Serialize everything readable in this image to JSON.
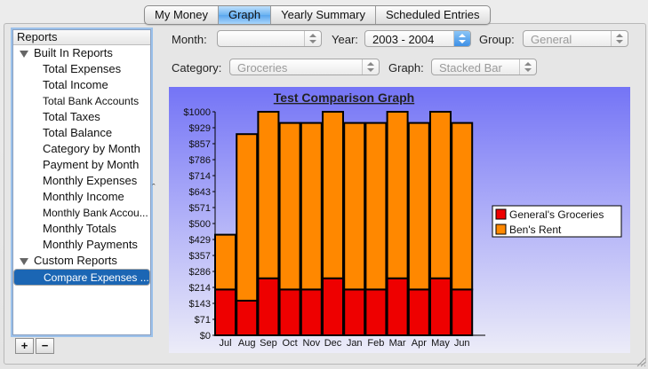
{
  "tabs": [
    {
      "label": "My Money",
      "active": false
    },
    {
      "label": "Graph",
      "active": true
    },
    {
      "label": "Yearly Summary",
      "active": false
    },
    {
      "label": "Scheduled Entries",
      "active": false
    }
  ],
  "sidebar": {
    "header": "Reports",
    "groups": [
      {
        "label": "Built In Reports",
        "items": [
          "Total Expenses",
          "Total Income",
          "Total Bank Accounts",
          "Total Taxes",
          "Total Balance",
          "Category by Month",
          "Payment by Month",
          "Monthly Expenses",
          "Monthly Income",
          "Monthly Bank Accou...",
          "Monthly Totals",
          "Monthly Payments"
        ]
      },
      {
        "label": "Custom Reports",
        "items": [
          "Compare Expenses ..."
        ]
      }
    ],
    "selected": "Compare Expenses ...",
    "add_label": "+",
    "remove_label": "−"
  },
  "controls": {
    "month_label": "Month:",
    "month_value": "",
    "year_label": "Year:",
    "year_value": "2003 - 2004",
    "group_label": "Group:",
    "group_value": "General",
    "category_label": "Category:",
    "category_value": "Groceries",
    "graph_label": "Graph:",
    "graph_value": "Stacked Bar"
  },
  "chart_data": {
    "type": "bar",
    "stacked": true,
    "title": "Test Comparison Graph",
    "xlabel": "",
    "ylabel": "",
    "categories": [
      "Jul",
      "Aug",
      "Sep",
      "Oct",
      "Nov",
      "Dec",
      "Jan",
      "Feb",
      "Mar",
      "Apr",
      "May",
      "Jun"
    ],
    "series": [
      {
        "name": "General's Groceries",
        "color": "#ee0000",
        "values": [
          205,
          155,
          255,
          205,
          205,
          255,
          205,
          205,
          255,
          205,
          255,
          205
        ]
      },
      {
        "name": "Ben's Rent",
        "color": "#ff8800",
        "values": [
          245,
          745,
          745,
          745,
          745,
          745,
          745,
          745,
          745,
          745,
          745,
          745
        ]
      }
    ],
    "ylim": [
      0,
      1000
    ],
    "yticks": [
      "$0",
      "$71",
      "$143",
      "$214",
      "$286",
      "$357",
      "$429",
      "$500",
      "$571",
      "$643",
      "$714",
      "$786",
      "$857",
      "$929",
      "$1000"
    ],
    "legend_position": "right",
    "grid": false
  }
}
